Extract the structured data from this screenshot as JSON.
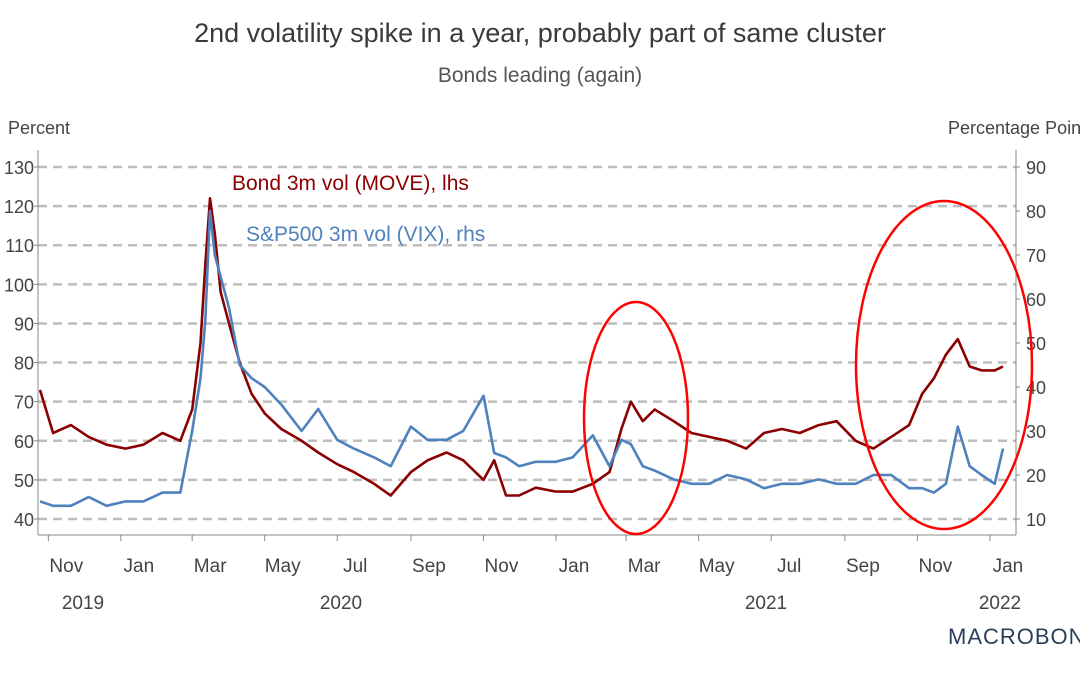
{
  "chart_data": {
    "type": "line",
    "title": "2nd volatility spike in a year, probably part of same cluster",
    "subtitle": "Bonds leading (again)",
    "left_axis_label": "Percent",
    "right_axis_label": "Percentage Points",
    "left_ticks": [
      130,
      120,
      110,
      100,
      90,
      80,
      70,
      60,
      50,
      40
    ],
    "right_ticks": [
      90,
      80,
      70,
      60,
      50,
      40,
      30,
      20,
      10
    ],
    "left_ylim": [
      35,
      135
    ],
    "right_ylim": [
      5,
      92
    ],
    "x_tick_labels": [
      "Nov",
      "Jan",
      "Mar",
      "May",
      "Jul",
      "Sep",
      "Nov",
      "Jan",
      "Mar",
      "May",
      "Jul",
      "Sep",
      "Nov",
      "Jan"
    ],
    "year_labels": [
      "2019",
      "2020",
      "2021",
      "2022"
    ],
    "grid": "horizontal-dashed",
    "series": [
      {
        "name": "Bond 3m vol (MOVE), lhs",
        "axis": "left",
        "color": "#8b0000",
        "points": [
          [
            "2019-10-25",
            73
          ],
          [
            "2019-11-05",
            62
          ],
          [
            "2019-11-20",
            64
          ],
          [
            "2019-12-05",
            61
          ],
          [
            "2019-12-20",
            59
          ],
          [
            "2020-01-05",
            58
          ],
          [
            "2020-01-20",
            59
          ],
          [
            "2020-02-05",
            62
          ],
          [
            "2020-02-20",
            60
          ],
          [
            "2020-03-01",
            68
          ],
          [
            "2020-03-08",
            85
          ],
          [
            "2020-03-12",
            105
          ],
          [
            "2020-03-16",
            122
          ],
          [
            "2020-03-20",
            113
          ],
          [
            "2020-03-25",
            98
          ],
          [
            "2020-04-01",
            90
          ],
          [
            "2020-04-10",
            80
          ],
          [
            "2020-04-20",
            72
          ],
          [
            "2020-05-01",
            67
          ],
          [
            "2020-05-15",
            63
          ],
          [
            "2020-06-01",
            60
          ],
          [
            "2020-06-15",
            57
          ],
          [
            "2020-07-01",
            54
          ],
          [
            "2020-07-15",
            52
          ],
          [
            "2020-08-01",
            49
          ],
          [
            "2020-08-15",
            46
          ],
          [
            "2020-09-01",
            52
          ],
          [
            "2020-09-15",
            55
          ],
          [
            "2020-10-01",
            57
          ],
          [
            "2020-10-15",
            55
          ],
          [
            "2020-11-01",
            50
          ],
          [
            "2020-11-10",
            55
          ],
          [
            "2020-11-20",
            46
          ],
          [
            "2020-12-01",
            46
          ],
          [
            "2020-12-15",
            48
          ],
          [
            "2021-01-01",
            47
          ],
          [
            "2021-01-15",
            47
          ],
          [
            "2021-02-01",
            49
          ],
          [
            "2021-02-15",
            52
          ],
          [
            "2021-02-25",
            63
          ],
          [
            "2021-03-05",
            70
          ],
          [
            "2021-03-15",
            65
          ],
          [
            "2021-03-25",
            68
          ],
          [
            "2021-04-10",
            65
          ],
          [
            "2021-04-25",
            62
          ],
          [
            "2021-05-10",
            61
          ],
          [
            "2021-05-25",
            60
          ],
          [
            "2021-06-10",
            58
          ],
          [
            "2021-06-25",
            62
          ],
          [
            "2021-07-10",
            63
          ],
          [
            "2021-07-25",
            62
          ],
          [
            "2021-08-10",
            64
          ],
          [
            "2021-08-25",
            65
          ],
          [
            "2021-09-10",
            60
          ],
          [
            "2021-09-25",
            58
          ],
          [
            "2021-10-10",
            61
          ],
          [
            "2021-10-25",
            64
          ],
          [
            "2021-11-05",
            72
          ],
          [
            "2021-11-15",
            76
          ],
          [
            "2021-11-25",
            82
          ],
          [
            "2021-12-05",
            86
          ],
          [
            "2021-12-15",
            79
          ],
          [
            "2021-12-25",
            78
          ],
          [
            "2022-01-05",
            78
          ],
          [
            "2022-01-12",
            79
          ]
        ]
      },
      {
        "name": "S&P500 3m vol (VIX), rhs",
        "axis": "right",
        "color": "#4f81bd",
        "points": [
          [
            "2019-10-25",
            14
          ],
          [
            "2019-11-05",
            13
          ],
          [
            "2019-11-20",
            13
          ],
          [
            "2019-12-05",
            15
          ],
          [
            "2019-12-20",
            13
          ],
          [
            "2020-01-05",
            14
          ],
          [
            "2020-01-20",
            14
          ],
          [
            "2020-02-05",
            16
          ],
          [
            "2020-02-20",
            16
          ],
          [
            "2020-03-01",
            30
          ],
          [
            "2020-03-08",
            42
          ],
          [
            "2020-03-12",
            55
          ],
          [
            "2020-03-16",
            80
          ],
          [
            "2020-03-20",
            70
          ],
          [
            "2020-03-25",
            65
          ],
          [
            "2020-04-01",
            58
          ],
          [
            "2020-04-10",
            45
          ],
          [
            "2020-04-20",
            42
          ],
          [
            "2020-05-01",
            40
          ],
          [
            "2020-05-15",
            36
          ],
          [
            "2020-06-01",
            30
          ],
          [
            "2020-06-15",
            35
          ],
          [
            "2020-07-01",
            28
          ],
          [
            "2020-07-15",
            26
          ],
          [
            "2020-08-01",
            24
          ],
          [
            "2020-08-15",
            22
          ],
          [
            "2020-09-01",
            31
          ],
          [
            "2020-09-15",
            28
          ],
          [
            "2020-10-01",
            28
          ],
          [
            "2020-10-15",
            30
          ],
          [
            "2020-11-01",
            38
          ],
          [
            "2020-11-10",
            25
          ],
          [
            "2020-11-20",
            24
          ],
          [
            "2020-12-01",
            22
          ],
          [
            "2020-12-15",
            23
          ],
          [
            "2021-01-01",
            23
          ],
          [
            "2021-01-15",
            24
          ],
          [
            "2021-02-01",
            29
          ],
          [
            "2021-02-15",
            22
          ],
          [
            "2021-02-25",
            28
          ],
          [
            "2021-03-05",
            27
          ],
          [
            "2021-03-15",
            22
          ],
          [
            "2021-03-25",
            21
          ],
          [
            "2021-04-10",
            19
          ],
          [
            "2021-04-25",
            18
          ],
          [
            "2021-05-10",
            18
          ],
          [
            "2021-05-25",
            20
          ],
          [
            "2021-06-10",
            19
          ],
          [
            "2021-06-25",
            17
          ],
          [
            "2021-07-10",
            18
          ],
          [
            "2021-07-25",
            18
          ],
          [
            "2021-08-10",
            19
          ],
          [
            "2021-08-25",
            18
          ],
          [
            "2021-09-10",
            18
          ],
          [
            "2021-09-25",
            20
          ],
          [
            "2021-10-10",
            20
          ],
          [
            "2021-10-25",
            17
          ],
          [
            "2021-11-05",
            17
          ],
          [
            "2021-11-15",
            16
          ],
          [
            "2021-11-25",
            18
          ],
          [
            "2021-12-05",
            31
          ],
          [
            "2021-12-15",
            22
          ],
          [
            "2021-12-25",
            20
          ],
          [
            "2022-01-05",
            18
          ],
          [
            "2022-01-12",
            26
          ]
        ]
      }
    ],
    "annotations": [
      "Bond 3m vol (MOVE), lhs",
      "S&P500 3m vol (VIX), rhs"
    ],
    "highlights": [
      "ellipse around Feb–Apr 2021",
      "ellipse around Oct 2021–Jan 2022"
    ]
  },
  "branding": {
    "logo_text": "MACROBOND"
  }
}
